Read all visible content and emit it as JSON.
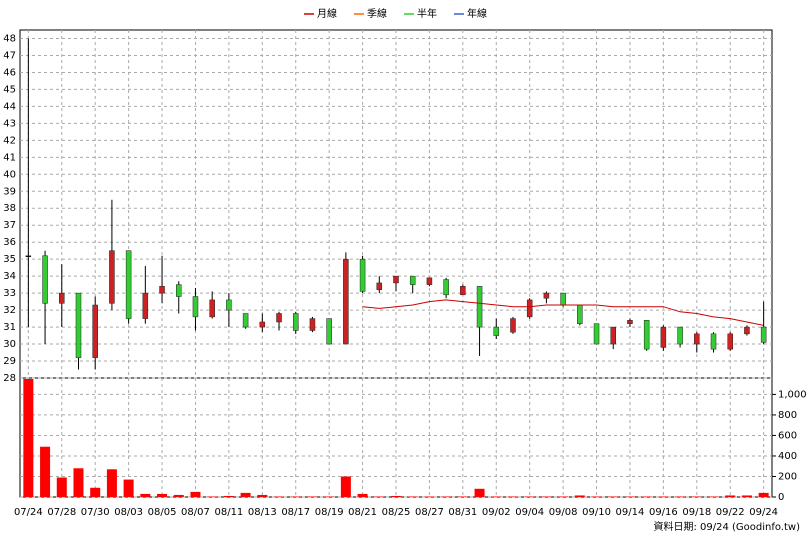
{
  "chart_data": {
    "type": "candlestick",
    "legend": "top",
    "series": [
      {
        "name": "月線",
        "color": "#cc0000",
        "values": [
          null,
          null,
          null,
          null,
          null,
          null,
          null,
          null,
          null,
          null,
          null,
          null,
          null,
          null,
          null,
          null,
          null,
          null,
          null,
          null,
          32.2,
          32.1,
          32.2,
          32.3,
          32.5,
          32.6,
          32.5,
          32.4,
          32.3,
          32.2,
          32.2,
          32.3,
          32.3,
          32.3,
          32.3,
          32.2,
          32.2,
          32.2,
          32.2,
          31.9,
          31.8,
          31.6,
          31.5,
          31.3,
          31.1
        ]
      },
      {
        "name": "季線",
        "color": "#ff6600"
      },
      {
        "name": "半年",
        "color": "#33cc33"
      },
      {
        "name": "年線",
        "color": "#3366cc"
      }
    ],
    "categories": [
      "07/24",
      null,
      "07/28",
      null,
      "07/30",
      null,
      "08/03",
      null,
      "08/05",
      null,
      "08/07",
      null,
      "08/11",
      null,
      "08/13",
      null,
      "08/17",
      null,
      "08/19",
      null,
      "08/21",
      null,
      "08/25",
      null,
      "08/27",
      null,
      "08/31",
      null,
      "09/02",
      null,
      "09/04",
      null,
      "09/08",
      null,
      "09/10",
      null,
      "09/14",
      null,
      "09/16",
      null,
      "09/18",
      null,
      "09/22",
      null,
      "09/24"
    ],
    "open": [
      35.2,
      35.2,
      32.4,
      33,
      29.2,
      32.4,
      35.5,
      31.5,
      33,
      33.5,
      32.8,
      31.6,
      32.6,
      31.8,
      31,
      31.3,
      31.8,
      30.8,
      31.5,
      30,
      35,
      33.2,
      33.6,
      34,
      33.5,
      33.8,
      32.9,
      33.4,
      31,
      30.7,
      31.6,
      32.7,
      33,
      32.3,
      31.2,
      30,
      31.2,
      31.4,
      29.8,
      31,
      30,
      30.6,
      29.7,
      30.6,
      31
    ],
    "high": [
      48,
      35.5,
      34.7,
      33,
      32.8,
      38.5,
      35.5,
      34.6,
      35.2,
      33.7,
      33.3,
      33.1,
      33,
      31.8,
      31.8,
      31.9,
      31.9,
      31.6,
      31.5,
      35.4,
      35.2,
      34,
      34,
      34,
      33.9,
      33.9,
      33.5,
      33.4,
      31.5,
      31.6,
      32.7,
      33.1,
      33,
      32.3,
      31.2,
      31,
      31.5,
      31.4,
      31.1,
      31,
      30.7,
      30.7,
      30.7,
      31.1,
      32.5
    ],
    "low": [
      31,
      30,
      31,
      28.5,
      28.5,
      32,
      31.2,
      31.2,
      32.4,
      31.8,
      30.8,
      31.5,
      31,
      30.9,
      30.7,
      30.8,
      30.6,
      30.7,
      30,
      30,
      33,
      33,
      33.1,
      33,
      33.4,
      32.7,
      32.9,
      29.3,
      30.3,
      30.6,
      31.5,
      32.4,
      32.2,
      31.1,
      30,
      29.7,
      31,
      29.6,
      29.6,
      29.8,
      29.5,
      29.5,
      29.6,
      30.5,
      30
    ],
    "close": [
      35.2,
      32.4,
      33,
      29.2,
      32.3,
      35.5,
      31.5,
      33,
      33.4,
      32.8,
      31.6,
      32.6,
      32,
      31,
      31.3,
      31.8,
      30.8,
      31.5,
      30,
      35,
      33.1,
      33.6,
      34,
      33.5,
      33.9,
      32.9,
      33.4,
      31,
      30.5,
      31.5,
      32.6,
      33,
      32.3,
      31.2,
      30,
      31,
      31.4,
      29.7,
      31,
      30,
      30.6,
      29.7,
      30.6,
      31,
      30.1
    ],
    "volume": [
      1150,
      490,
      190,
      280,
      90,
      270,
      170,
      30,
      30,
      20,
      50,
      5,
      10,
      40,
      20,
      5,
      5,
      5,
      5,
      200,
      30,
      5,
      10,
      5,
      5,
      5,
      5,
      80,
      5,
      5,
      5,
      5,
      5,
      15,
      5,
      5,
      5,
      5,
      5,
      5,
      5,
      5,
      15,
      15,
      40
    ],
    "up_color": "#cc2222",
    "down_color": "#33cc33",
    "volume_color": "#ff0000",
    "ylim": [
      28,
      48.5
    ],
    "yticks": [
      28,
      29,
      30,
      31,
      32,
      33,
      34,
      35,
      36,
      37,
      38,
      39,
      40,
      41,
      42,
      43,
      44,
      45,
      46,
      47,
      48
    ],
    "y2lim": [
      0,
      1160
    ],
    "y2ticks": [
      0,
      200,
      400,
      600,
      800,
      {
        "value": 1000,
        "label": "1,000"
      }
    ],
    "grid": true,
    "footer": "資料日期: 09/24  (Goodinfo.tw)"
  }
}
